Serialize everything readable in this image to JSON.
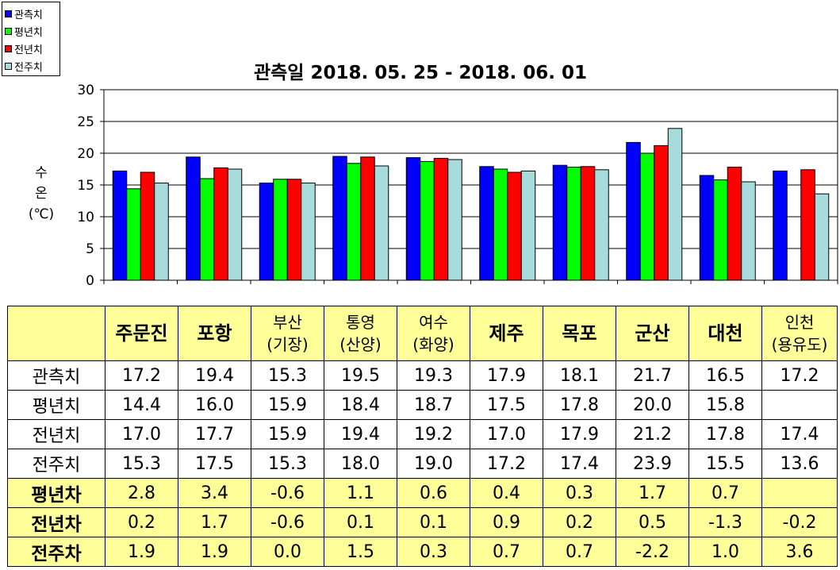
{
  "chart_data": {
    "type": "bar",
    "title": "관측일 2018. 05. 25 - 2018. 06. 01",
    "ylabel_lines": [
      "수",
      "온",
      "(℃)"
    ],
    "ylim": [
      0,
      30
    ],
    "yticks": [
      "0",
      "5",
      "10",
      "15",
      "20",
      "25",
      "30"
    ],
    "grid": true,
    "legend_position": "top-left",
    "categories": [
      "주문진",
      "포항",
      "부산(기장)",
      "통영(산양)",
      "여수(화양)",
      "제주",
      "목포",
      "군산",
      "대천",
      "인천(용유도)"
    ],
    "series": [
      {
        "name": "관측치",
        "color": "#0000ff",
        "values": [
          17.2,
          19.4,
          15.3,
          19.5,
          19.3,
          17.9,
          18.1,
          21.7,
          16.5,
          17.2
        ]
      },
      {
        "name": "평년치",
        "color": "#00ff00",
        "values": [
          14.4,
          16.0,
          15.9,
          18.4,
          18.7,
          17.5,
          17.8,
          20.0,
          15.8,
          null
        ]
      },
      {
        "name": "전년치",
        "color": "#ff0000",
        "values": [
          17.0,
          17.7,
          15.9,
          19.4,
          19.2,
          17.0,
          17.9,
          21.2,
          17.8,
          17.4
        ]
      },
      {
        "name": "전주치",
        "color": "#a8dcdc",
        "values": [
          15.3,
          17.5,
          15.3,
          18.0,
          19.0,
          17.2,
          17.4,
          23.9,
          15.5,
          13.6
        ]
      }
    ]
  },
  "table": {
    "headers": [
      {
        "line1": "주문진",
        "line2": "",
        "style": "bold"
      },
      {
        "line1": "포항",
        "line2": "",
        "style": "bold"
      },
      {
        "line1": "부산",
        "line2": "(기장)",
        "style": "small"
      },
      {
        "line1": "통영",
        "line2": "(산양)",
        "style": "small"
      },
      {
        "line1": "여수",
        "line2": "(화양)",
        "style": "small"
      },
      {
        "line1": "제주",
        "line2": "",
        "style": "bold"
      },
      {
        "line1": "목포",
        "line2": "",
        "style": "bold"
      },
      {
        "line1": "군산",
        "line2": "",
        "style": "bold"
      },
      {
        "line1": "대천",
        "line2": "",
        "style": "bold"
      },
      {
        "line1": "인천",
        "line2": "(용유도)",
        "style": "small"
      }
    ],
    "rows": [
      {
        "label": "관측치",
        "diff": false,
        "cells": [
          "17.2",
          "19.4",
          "15.3",
          "19.5",
          "19.3",
          "17.9",
          "18.1",
          "21.7",
          "16.5",
          "17.2"
        ]
      },
      {
        "label": "평년치",
        "diff": false,
        "cells": [
          "14.4",
          "16.0",
          "15.9",
          "18.4",
          "18.7",
          "17.5",
          "17.8",
          "20.0",
          "15.8",
          ""
        ]
      },
      {
        "label": "전년치",
        "diff": false,
        "cells": [
          "17.0",
          "17.7",
          "15.9",
          "19.4",
          "19.2",
          "17.0",
          "17.9",
          "21.2",
          "17.8",
          "17.4"
        ]
      },
      {
        "label": "전주치",
        "diff": false,
        "cells": [
          "15.3",
          "17.5",
          "15.3",
          "18.0",
          "19.0",
          "17.2",
          "17.4",
          "23.9",
          "15.5",
          "13.6"
        ]
      },
      {
        "label": "평년차",
        "diff": true,
        "cells": [
          "2.8",
          "3.4",
          "-0.6",
          "1.1",
          "0.6",
          "0.4",
          "0.3",
          "1.7",
          "0.7",
          ""
        ]
      },
      {
        "label": "전년차",
        "diff": true,
        "cells": [
          "0.2",
          "1.7",
          "-0.6",
          "0.1",
          "0.1",
          "0.9",
          "0.2",
          "0.5",
          "-1.3",
          "-0.2"
        ]
      },
      {
        "label": "전주차",
        "diff": true,
        "cells": [
          "1.9",
          "1.9",
          "0.0",
          "1.5",
          "0.3",
          "0.7",
          "0.7",
          "-2.2",
          "1.0",
          "3.6"
        ]
      }
    ]
  }
}
